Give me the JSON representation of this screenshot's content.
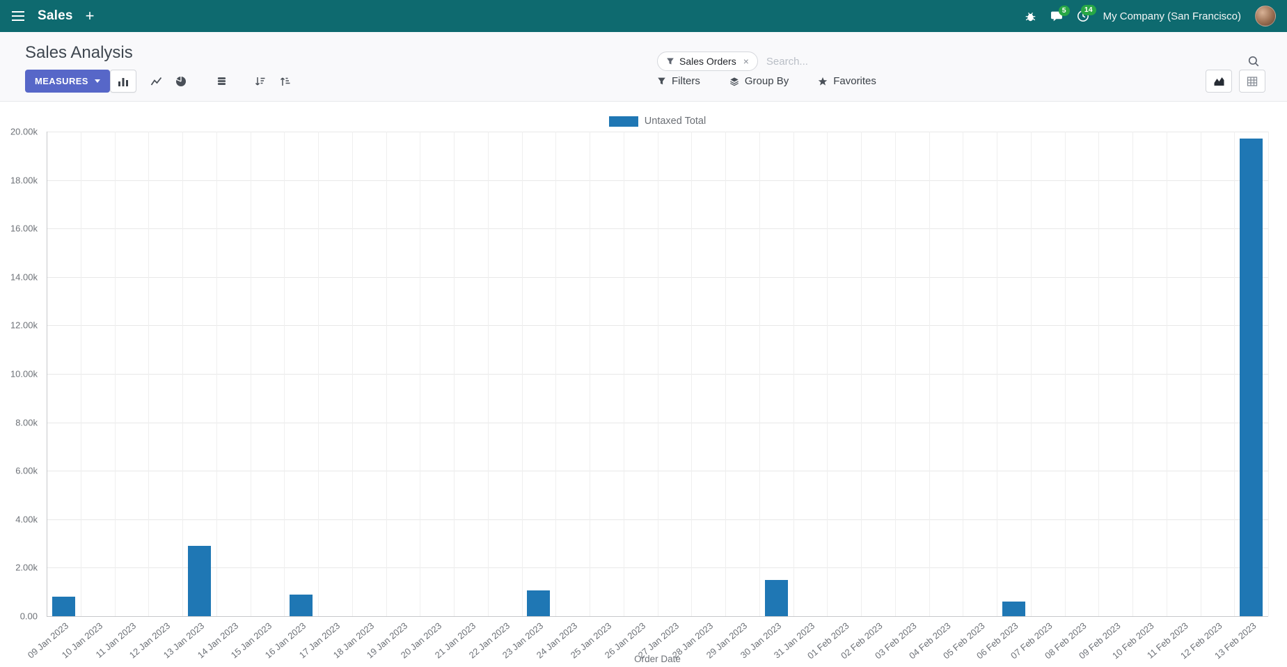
{
  "navbar": {
    "app_menu_label": "Sales",
    "plus_label": "+",
    "messages_badge": "5",
    "activities_badge": "14",
    "company": "My Company (San Francisco)"
  },
  "control_panel": {
    "title": "Sales Analysis",
    "measures_label": "MEASURES",
    "search": {
      "facet_label": "Sales Orders",
      "facet_remove": "×",
      "placeholder": "Search..."
    },
    "filters_label": "Filters",
    "group_by_label": "Group By",
    "favorites_label": "Favorites"
  },
  "chart_data": {
    "type": "bar",
    "title": "",
    "xlabel": "Order Date",
    "ylabel": "",
    "ylim": [
      0,
      20000
    ],
    "ytick_step": 2000,
    "grid": true,
    "legend_position": "top",
    "categories": [
      "09 Jan 2023",
      "10 Jan 2023",
      "11 Jan 2023",
      "12 Jan 2023",
      "13 Jan 2023",
      "14 Jan 2023",
      "15 Jan 2023",
      "16 Jan 2023",
      "17 Jan 2023",
      "18 Jan 2023",
      "19 Jan 2023",
      "20 Jan 2023",
      "21 Jan 2023",
      "22 Jan 2023",
      "23 Jan 2023",
      "24 Jan 2023",
      "25 Jan 2023",
      "26 Jan 2023",
      "27 Jan 2023",
      "28 Jan 2023",
      "29 Jan 2023",
      "30 Jan 2023",
      "31 Jan 2023",
      "01 Feb 2023",
      "02 Feb 2023",
      "03 Feb 2023",
      "04 Feb 2023",
      "05 Feb 2023",
      "06 Feb 2023",
      "07 Feb 2023",
      "08 Feb 2023",
      "09 Feb 2023",
      "10 Feb 2023",
      "11 Feb 2023",
      "12 Feb 2023",
      "13 Feb 2023"
    ],
    "series": [
      {
        "name": "Untaxed Total",
        "color": "#1f77b4",
        "values": [
          800,
          0,
          0,
          0,
          2900,
          0,
          0,
          900,
          0,
          0,
          0,
          0,
          0,
          0,
          1050,
          0,
          0,
          0,
          0,
          0,
          0,
          1500,
          0,
          0,
          0,
          0,
          0,
          0,
          600,
          0,
          0,
          0,
          0,
          0,
          0,
          19700
        ]
      }
    ]
  },
  "colors": {
    "navbar_bg": "#0e6a6f",
    "primary_button": "#5767c8",
    "badge_green": "#28a745",
    "bar": "#1f77b4"
  }
}
